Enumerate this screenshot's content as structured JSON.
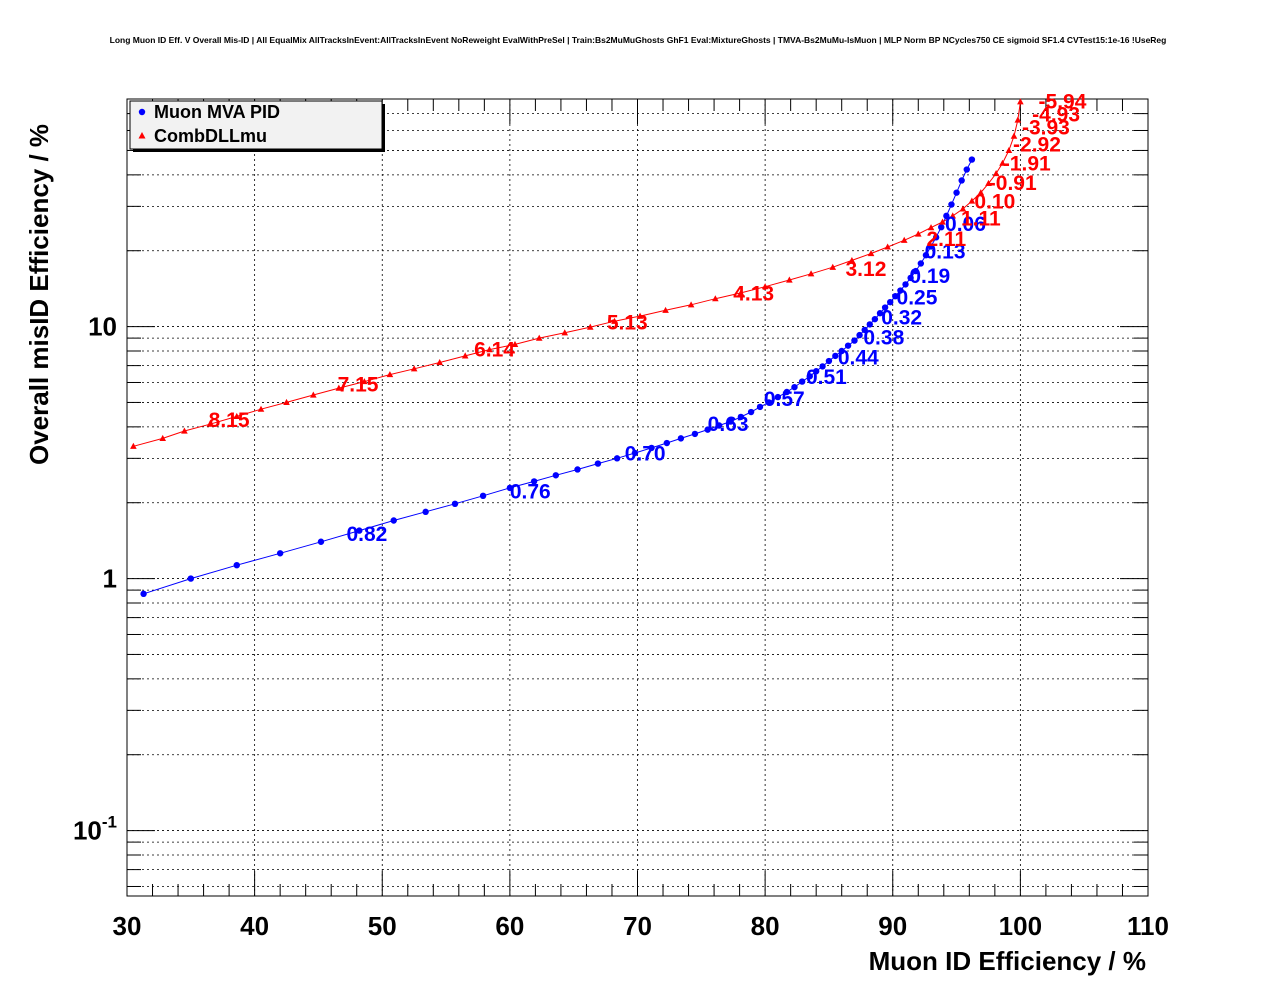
{
  "chart_data": {
    "type": "scatter",
    "title": "Long Muon ID Eff. V Overall Mis-ID | All EqualMix AllTracksInEvent:AllTracksInEvent NoReweight EvalWithPreSel | Train:Bs2MuMuGhosts GhF1 Eval:MixtureGhosts | TMVA-Bs2MuMu-IsMuon | MLP Norm BP NCycles750 CE sigmoid SF1.4 CVTest15:1e-16 !UseReg",
    "xlabel": "Muon ID Efficiency / %",
    "ylabel": "Overall misID Efficiency / %",
    "xlim": [
      30,
      110
    ],
    "ylim": [
      0.055,
      80
    ],
    "yscale": "log",
    "grid": true,
    "legend_position": "top-left",
    "x_ticks": [
      "30",
      "40",
      "50",
      "60",
      "70",
      "80",
      "90",
      "100",
      "110"
    ],
    "y_ticks": [
      {
        "value": 0.1,
        "base": "10",
        "exp": "-1"
      },
      {
        "value": 1,
        "base": "1",
        "exp": ""
      },
      {
        "value": 10,
        "base": "10",
        "exp": ""
      }
    ],
    "series": [
      {
        "name": "Muon MVA PID",
        "color": "#0000ff",
        "marker": "circle",
        "points": [
          [
            31.3,
            0.87
          ],
          [
            35,
            1.0
          ],
          [
            38.6,
            1.13
          ],
          [
            42,
            1.26
          ],
          [
            45.2,
            1.4
          ],
          [
            48.2,
            1.55
          ],
          [
            50.9,
            1.7
          ],
          [
            53.4,
            1.84
          ],
          [
            55.7,
            1.98
          ],
          [
            57.9,
            2.13
          ],
          [
            60,
            2.29
          ],
          [
            61.9,
            2.43
          ],
          [
            63.6,
            2.57
          ],
          [
            65.3,
            2.71
          ],
          [
            66.9,
            2.86
          ],
          [
            68.4,
            3.0
          ],
          [
            69.8,
            3.15
          ],
          [
            71.1,
            3.3
          ],
          [
            72.3,
            3.45
          ],
          [
            73.4,
            3.6
          ],
          [
            74.5,
            3.75
          ],
          [
            75.5,
            3.9
          ],
          [
            76.4,
            4.05
          ],
          [
            77.3,
            4.2
          ],
          [
            78.1,
            4.38
          ],
          [
            78.9,
            4.58
          ],
          [
            79.6,
            4.8
          ],
          [
            80.3,
            5.0
          ],
          [
            81,
            5.25
          ],
          [
            81.7,
            5.5
          ],
          [
            82.3,
            5.75
          ],
          [
            82.9,
            6.05
          ],
          [
            83.5,
            6.35
          ],
          [
            84,
            6.65
          ],
          [
            84.5,
            6.95
          ],
          [
            85,
            7.3
          ],
          [
            85.5,
            7.65
          ],
          [
            86,
            8.0
          ],
          [
            86.5,
            8.4
          ],
          [
            87,
            8.8
          ],
          [
            87.4,
            9.25
          ],
          [
            87.8,
            9.7
          ],
          [
            88.2,
            10.2
          ],
          [
            88.6,
            10.7
          ],
          [
            89,
            11.3
          ],
          [
            89.4,
            11.9
          ],
          [
            89.8,
            12.5
          ],
          [
            90.2,
            13.2
          ],
          [
            90.6,
            13.9
          ],
          [
            91,
            14.7
          ],
          [
            91.4,
            15.6
          ],
          [
            91.8,
            16.6
          ],
          [
            92.2,
            17.8
          ],
          [
            92.6,
            19.2
          ],
          [
            93,
            20.8
          ],
          [
            93.4,
            22.6
          ],
          [
            93.8,
            24.8
          ],
          [
            94.2,
            27.5
          ],
          [
            94.6,
            30.5
          ],
          [
            95,
            34
          ],
          [
            95.4,
            38
          ],
          [
            95.8,
            42
          ],
          [
            96.2,
            46
          ]
        ],
        "labels": [
          {
            "x": 48.8,
            "y": 1.5,
            "text": "0.82"
          },
          {
            "x": 61.6,
            "y": 2.22,
            "text": "0.76"
          },
          {
            "x": 70.6,
            "y": 3.14,
            "text": "0.70"
          },
          {
            "x": 77.1,
            "y": 4.1,
            "text": "0.63"
          },
          {
            "x": 81.5,
            "y": 5.15,
            "text": "0.57"
          },
          {
            "x": 84.8,
            "y": 6.3,
            "text": "0.51"
          },
          {
            "x": 87.3,
            "y": 7.55,
            "text": "0.44"
          },
          {
            "x": 89.3,
            "y": 9.05,
            "text": "0.38"
          },
          {
            "x": 90.7,
            "y": 10.85,
            "text": "0.32"
          },
          {
            "x": 91.9,
            "y": 13.05,
            "text": "0.25"
          },
          {
            "x": 92.9,
            "y": 15.85,
            "text": "0.19"
          },
          {
            "x": 94.1,
            "y": 19.9,
            "text": "0.13"
          },
          {
            "x": 95.7,
            "y": 25.5,
            "text": "0.06"
          }
        ]
      },
      {
        "name": "CombDLLmu",
        "color": "#ff0000",
        "marker": "triangle",
        "points": [
          [
            30.5,
            3.35
          ],
          [
            32.8,
            3.6
          ],
          [
            34.5,
            3.85
          ],
          [
            36.5,
            4.1
          ],
          [
            38.6,
            4.4
          ],
          [
            40.5,
            4.7
          ],
          [
            42.5,
            5.0
          ],
          [
            44.6,
            5.35
          ],
          [
            46.6,
            5.7
          ],
          [
            48.6,
            6.05
          ],
          [
            50.6,
            6.45
          ],
          [
            52.5,
            6.8
          ],
          [
            54.5,
            7.2
          ],
          [
            56.5,
            7.65
          ],
          [
            58.4,
            8.1
          ],
          [
            60.4,
            8.5
          ],
          [
            62.3,
            9.0
          ],
          [
            64.3,
            9.45
          ],
          [
            66.3,
            9.95
          ],
          [
            68.2,
            10.5
          ],
          [
            70.2,
            11.0
          ],
          [
            72.2,
            11.6
          ],
          [
            74.2,
            12.2
          ],
          [
            76.1,
            12.9
          ],
          [
            78.1,
            13.6
          ],
          [
            80,
            14.4
          ],
          [
            81.9,
            15.3
          ],
          [
            83.6,
            16.2
          ],
          [
            85.3,
            17.2
          ],
          [
            86.8,
            18.3
          ],
          [
            88.3,
            19.5
          ],
          [
            89.6,
            20.7
          ],
          [
            90.9,
            22
          ],
          [
            92,
            23.3
          ],
          [
            93,
            24.7
          ],
          [
            93.9,
            26
          ],
          [
            94.7,
            27.5
          ],
          [
            95.5,
            29.3
          ],
          [
            96.2,
            31.5
          ],
          [
            96.9,
            34
          ],
          [
            97.5,
            37
          ],
          [
            98.1,
            40.5
          ],
          [
            98.6,
            44.5
          ],
          [
            99.1,
            50
          ],
          [
            99.5,
            57
          ],
          [
            99.8,
            66
          ],
          [
            100,
            78
          ]
        ],
        "labels": [
          {
            "x": 38.0,
            "y": 4.25,
            "text": "8.15"
          },
          {
            "x": 48.1,
            "y": 5.9,
            "text": "7.15"
          },
          {
            "x": 58.8,
            "y": 8.1,
            "text": "6.14"
          },
          {
            "x": 69.2,
            "y": 10.4,
            "text": "5.13"
          },
          {
            "x": 79.1,
            "y": 13.5,
            "text": "4.13"
          },
          {
            "x": 87.9,
            "y": 16.9,
            "text": "3.12"
          },
          {
            "x": 94.2,
            "y": 22.3,
            "text": "2.11"
          },
          {
            "x": 96.9,
            "y": 26.8,
            "text": "1.11"
          },
          {
            "x": 98.0,
            "y": 31.4,
            "text": "0.10"
          },
          {
            "x": 99.4,
            "y": 37.1,
            "text": "-0.91"
          },
          {
            "x": 100.5,
            "y": 44.4,
            "text": "-1.91"
          },
          {
            "x": 101.3,
            "y": 52.7,
            "text": "-2.92"
          },
          {
            "x": 102.0,
            "y": 61.6,
            "text": "-3.93"
          },
          {
            "x": 102.8,
            "y": 69.4,
            "text": "-4.93"
          },
          {
            "x": 103.3,
            "y": 78.2,
            "text": "-5.94"
          }
        ]
      }
    ]
  }
}
